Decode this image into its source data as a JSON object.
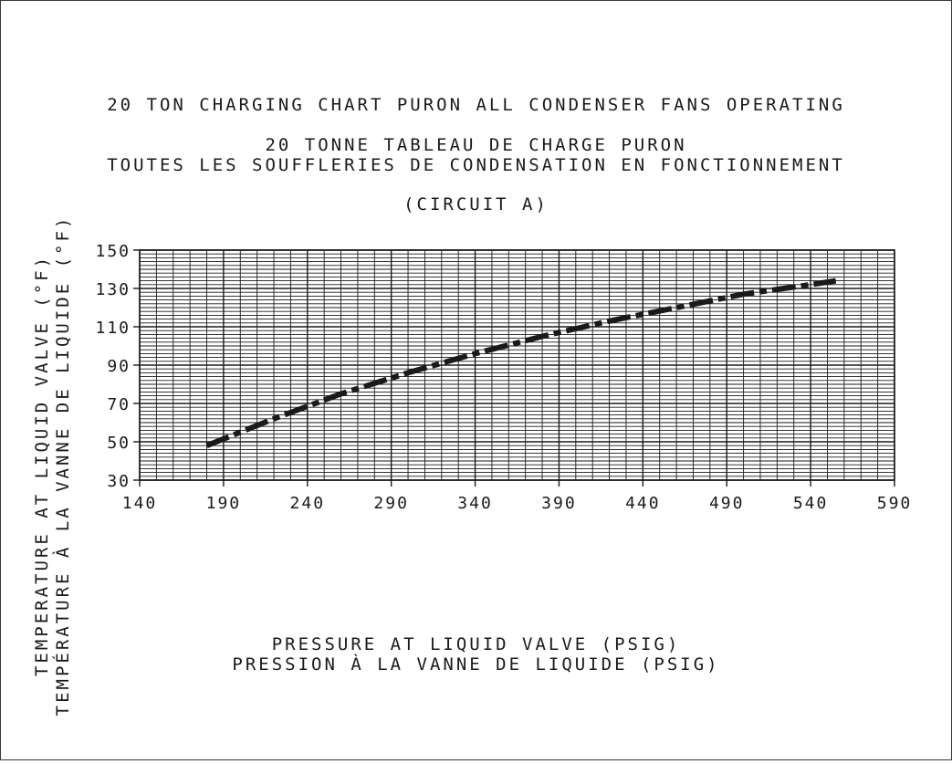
{
  "chart_data": {
    "type": "line",
    "title": "20 TON CHARGING CHART PURON ALL CONDENSER FANS OPERATING",
    "subtitle": [
      "20 TONNE TABLEAU DE CHARGE PURON",
      "TOUTES LES SOUFFLERIES DE CONDENSATION EN FONCTIONNEMENT",
      "(CIRCUIT A)"
    ],
    "ylabel": [
      "TEMPERATURE AT LIQUID VALVE (°F)",
      "TEMPÉRATURE À LA VANNE DE LIQUIDE (°F)"
    ],
    "xlabel": [
      "PRESSURE AT LIQUID VALVE (PSIG)",
      "PRESSION À LA VANNE DE LIQUIDE (PSIG)"
    ],
    "xlim": [
      140,
      590
    ],
    "ylim": [
      30,
      150
    ],
    "x_ticks": [
      "140",
      "190",
      "240",
      "290",
      "340",
      "390",
      "440",
      "490",
      "540",
      "590"
    ],
    "y_ticks": [
      "150",
      "130",
      "110",
      "90",
      "70",
      "50",
      "30"
    ],
    "grid": true,
    "series": [
      {
        "x": [
          180,
          220,
          260,
          300,
          340,
          380,
          420,
          460,
          500,
          540,
          555
        ],
        "y": [
          48,
          62,
          75,
          86,
          96,
          105,
          113,
          120,
          127,
          132,
          134
        ]
      }
    ]
  }
}
